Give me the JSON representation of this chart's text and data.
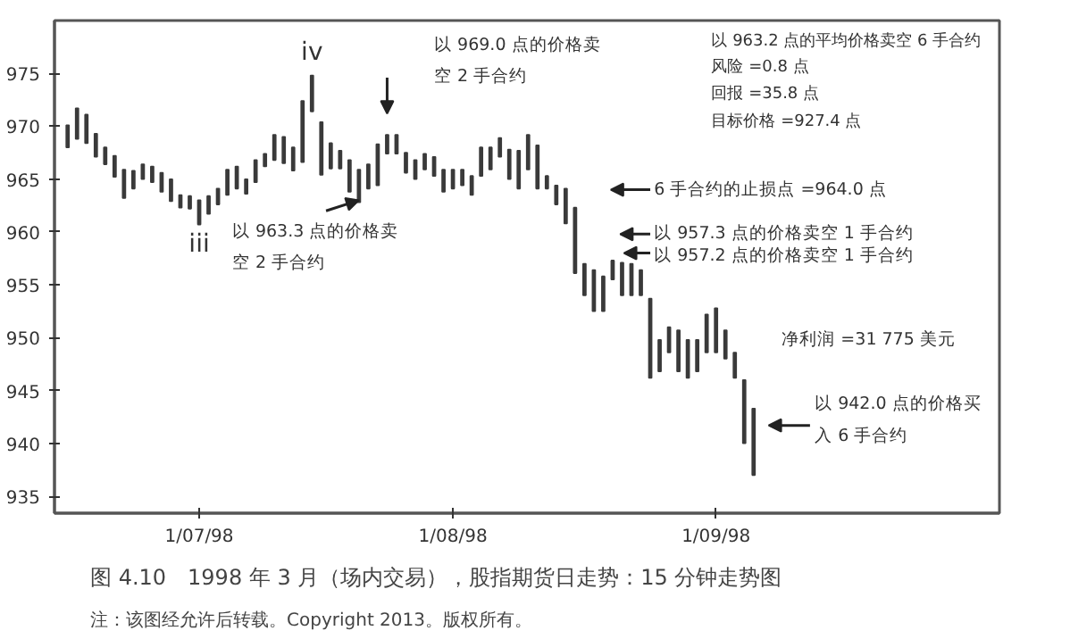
{
  "chart_data": {
    "type": "bar",
    "categories": [
      null,
      null,
      null,
      null,
      null,
      null,
      null,
      null,
      null,
      null,
      null,
      null,
      null,
      null,
      "1/07/98",
      null,
      null,
      null,
      null,
      null,
      null,
      null,
      null,
      null,
      null,
      null,
      null,
      null,
      null,
      null,
      null,
      null,
      null,
      null,
      null,
      null,
      null,
      null,
      null,
      null,
      null,
      "1/08/98",
      null,
      null,
      null,
      null,
      null,
      null,
      null,
      null,
      null,
      null,
      null,
      null,
      null,
      null,
      null,
      null,
      null,
      null,
      null,
      null,
      null,
      null,
      null,
      null,
      null,
      null,
      null,
      "1/09/98",
      null,
      null,
      null,
      null
    ],
    "base": [
      968.0,
      968.8,
      968.4,
      967.1,
      966.4,
      965.2,
      963.2,
      964.1,
      965.0,
      964.7,
      963.8,
      962.9,
      962.3,
      962.2,
      960.7,
      961.7,
      962.6,
      963.5,
      964.1,
      963.6,
      964.7,
      966.2,
      966.8,
      966.5,
      965.8,
      966.6,
      971.4,
      965.4,
      966.0,
      966.0,
      963.8,
      962.8,
      964.1,
      964.4,
      967.4,
      967.4,
      965.6,
      965.0,
      965.9,
      965.3,
      963.8,
      964.1,
      964.4,
      963.5,
      965.3,
      965.9,
      967.1,
      965.0,
      964.1,
      965.9,
      964.1,
      964.1,
      962.6,
      960.8,
      956.1,
      954.0,
      952.5,
      952.5,
      955.5,
      954.0,
      954.0,
      954.0,
      946.2,
      946.8,
      948.6,
      946.8,
      946.2,
      946.8,
      948.6,
      948.6,
      948.0,
      946.2,
      940.0,
      937.0
    ],
    "color": "#3a3a3a",
    "values": [
      2.1,
      2.9,
      2.7,
      2.2,
      1.6,
      2.0,
      2.7,
      1.7,
      1.4,
      1.5,
      1.8,
      2.1,
      1.2,
      1.2,
      2.3,
      1.7,
      1.5,
      2.4,
      2.1,
      1.4,
      2.1,
      1.2,
      2.4,
      2.5,
      2.2,
      5.8,
      3.4,
      5.0,
      2.4,
      1.7,
      3.0,
      3.1,
      2.3,
      3.9,
      1.8,
      1.8,
      1.9,
      1.8,
      1.5,
      1.8,
      2.1,
      1.8,
      1.5,
      1.8,
      2.7,
      2.1,
      1.8,
      2.8,
      3.6,
      3.3,
      4.1,
      1.2,
      1.8,
      3.3,
      6.2,
      3.0,
      3.9,
      3.3,
      1.8,
      3.1,
      3.0,
      2.4,
      7.5,
      3.0,
      2.4,
      3.9,
      3.6,
      3.0,
      3.6,
      4.2,
      2.7,
      2.4,
      6.0,
      6.3
    ],
    "ylim": [
      933.4,
      980
    ],
    "yticks": [
      935,
      940,
      945,
      950,
      955,
      960,
      965,
      970,
      975
    ],
    "grid": false,
    "annotations": [
      "iv",
      "iii",
      "以 969.0 点的价格卖空 2 手合约",
      "以 963.3 点的价格卖空 2 手合约",
      "6 手合约的止损点 =964.0 点",
      "以 957.3 点的价格卖空 1 手合约",
      "以 957.2 点的价格卖空 1 手合约",
      "以 942.0 点的价格买入 6 手合约",
      "以 963.2 点的平均价格卖空 6 手合约",
      "风险 =0.8 点",
      "回报 =35.8 点",
      "目标价格 =927.4 点",
      "净利润 =31 775 美元",
      "图 4.10　1998 年 3 月（场内交易），股指期货日走势：15 分钟走势图",
      "注：该图经允许后转载。Copyright 2013。版权所有。"
    ]
  }
}
